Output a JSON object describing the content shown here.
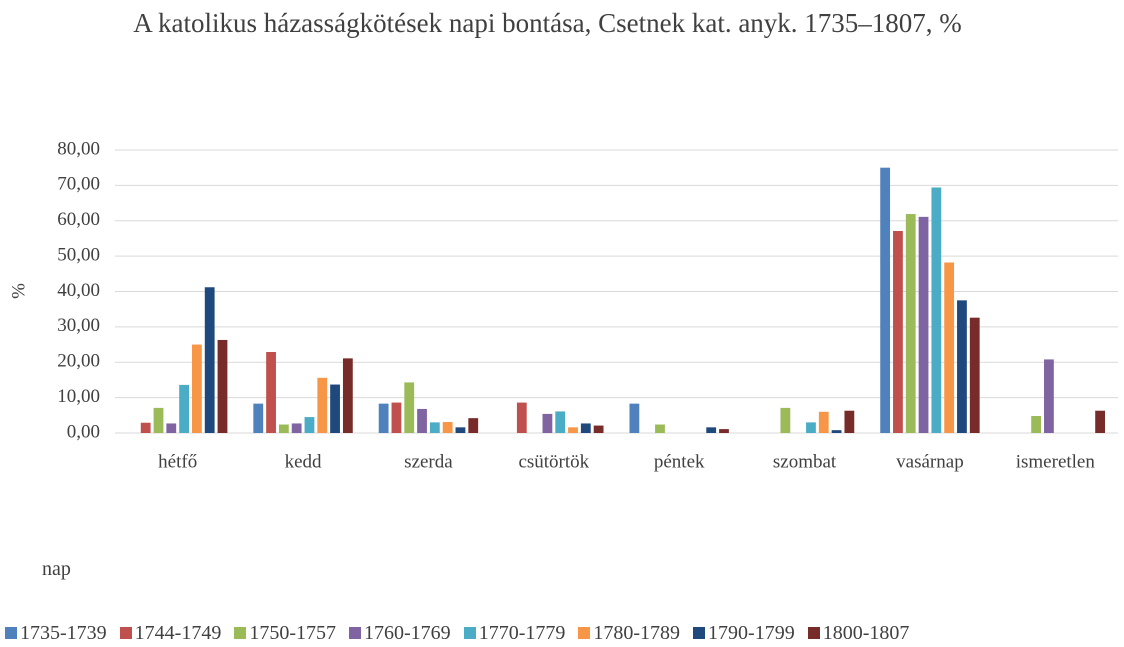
{
  "chart_data": {
    "type": "bar",
    "title": "A katolikus házasságkötések napi bontása, Csetnek kat. anyk. 1735–1807, %",
    "y_label": "%",
    "x_label": "nap",
    "categories": [
      "hétfő",
      "kedd",
      "szerda",
      "csütörtök",
      "péntek",
      "szombat",
      "vasárnap",
      "ismeretlen"
    ],
    "series": [
      {
        "name": "1735-1739",
        "color": "#4f81bd",
        "values": [
          0,
          8.3,
          8.3,
          0,
          8.3,
          0,
          75.0,
          0
        ]
      },
      {
        "name": "1744-1749",
        "color": "#c0504d",
        "values": [
          2.9,
          22.9,
          8.6,
          8.6,
          0,
          0,
          57.1,
          0
        ]
      },
      {
        "name": "1750-1757",
        "color": "#9bbb59",
        "values": [
          7.1,
          2.4,
          14.3,
          0,
          2.4,
          7.1,
          61.9,
          4.8
        ]
      },
      {
        "name": "1760-1769",
        "color": "#8064a2",
        "values": [
          2.7,
          2.7,
          6.8,
          5.4,
          0,
          0,
          61.1,
          20.8
        ]
      },
      {
        "name": "1770-1779",
        "color": "#4bacc6",
        "values": [
          13.6,
          4.5,
          3.0,
          6.1,
          0,
          3.0,
          69.4,
          0
        ]
      },
      {
        "name": "1780-1789",
        "color": "#f79646",
        "values": [
          25.0,
          15.6,
          3.1,
          1.6,
          0,
          6.0,
          48.2,
          0
        ]
      },
      {
        "name": "1790-1799",
        "color": "#1f497d",
        "values": [
          41.2,
          13.7,
          1.6,
          2.7,
          1.6,
          0.8,
          37.5,
          0
        ]
      },
      {
        "name": "1800-1807",
        "color": "#772c2a",
        "values": [
          26.3,
          21.1,
          4.2,
          2.1,
          1.1,
          6.3,
          32.6,
          6.3
        ]
      }
    ],
    "ylim": [
      0,
      80
    ],
    "yticks": [
      {
        "value": 0,
        "label": "0,00"
      },
      {
        "value": 10,
        "label": "10,00"
      },
      {
        "value": 20,
        "label": "20,00"
      },
      {
        "value": 30,
        "label": "30,00"
      },
      {
        "value": 40,
        "label": "40,00"
      },
      {
        "value": 50,
        "label": "50,00"
      },
      {
        "value": 60,
        "label": "60,00"
      },
      {
        "value": 70,
        "label": "70,00"
      },
      {
        "value": 80,
        "label": "80,00"
      }
    ],
    "grid": true,
    "legend": "bottom"
  }
}
